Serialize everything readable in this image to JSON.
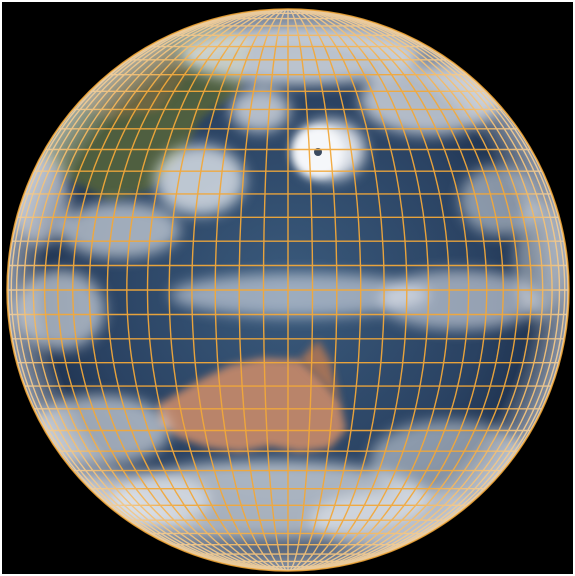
{
  "image": {
    "subject": "full-disk-earth-satellite-view",
    "features": [
      "ocean",
      "australia-landmass",
      "asia-landmass",
      "cloud-cover",
      "typhoon-vortex",
      "lat-lon-grid"
    ]
  },
  "colors": {
    "background": "#000000",
    "border": "#ffffff",
    "ocean_deep": "#1b2a44",
    "ocean_mid": "#2f4a6a",
    "land_desert": "#b9846a",
    "land_green": "#5a6a3a",
    "cloud": "#e9edf2",
    "grid": "#f2a83a"
  }
}
